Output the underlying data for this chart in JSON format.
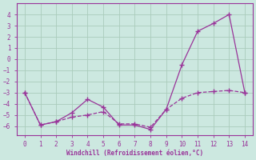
{
  "line1_x": [
    0,
    1,
    2,
    3,
    4,
    5,
    6,
    7,
    8,
    9,
    10,
    11,
    12,
    13,
    14
  ],
  "line1_y": [
    -3.0,
    -5.9,
    -5.6,
    -4.8,
    -3.6,
    -4.3,
    -5.9,
    -5.9,
    -6.3,
    -4.5,
    -0.5,
    2.5,
    3.2,
    4.0,
    -3.0
  ],
  "line2_x": [
    0,
    1,
    2,
    3,
    4,
    5,
    6,
    7,
    8,
    9,
    10,
    11,
    12,
    13,
    14
  ],
  "line2_y": [
    -3.0,
    -5.9,
    -5.6,
    -5.2,
    -5.0,
    -4.7,
    -5.8,
    -5.8,
    -6.1,
    -4.5,
    -3.5,
    -3.0,
    -2.9,
    -2.8,
    -3.0
  ],
  "line_color": "#993399",
  "bg_color": "#cce8e0",
  "grid_color": "#aaccbb",
  "xlabel": "Windchill (Refroidissement éolien,°C)",
  "xlim": [
    -0.5,
    14.5
  ],
  "ylim": [
    -6.8,
    5.0
  ],
  "xticks": [
    0,
    1,
    2,
    3,
    4,
    5,
    6,
    7,
    8,
    9,
    10,
    11,
    12,
    13,
    14
  ],
  "yticks": [
    -6,
    -5,
    -4,
    -3,
    -2,
    -1,
    0,
    1,
    2,
    3,
    4
  ]
}
